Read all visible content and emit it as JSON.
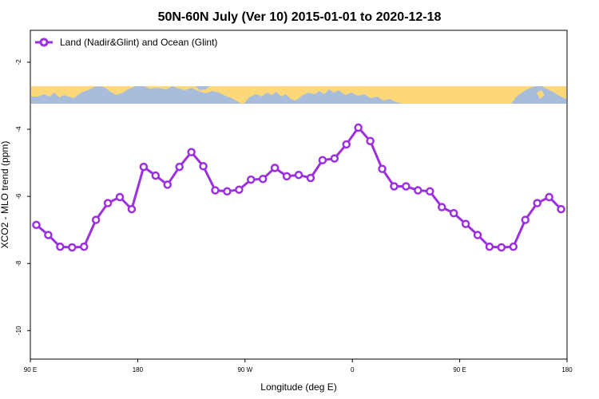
{
  "chart_data": {
    "type": "line",
    "title": "50N-60N July (Ver 10)   2015-01-01 to 2020-12-18",
    "xlabel": "Longitude (deg E)",
    "ylabel": "XCO2 - MLO trend (ppm)",
    "x_tick_labels": [
      "90 E",
      "180",
      "90 W",
      "0",
      "90 E",
      "180"
    ],
    "x_tick_values": [
      90,
      180,
      270,
      360,
      450,
      540
    ],
    "xlim": [
      90,
      540
    ],
    "y_tick_labels": [
      "-2",
      "-4",
      "-6",
      "-8",
      "-10"
    ],
    "y_tick_values": [
      -2,
      -4,
      -6,
      -8,
      -10
    ],
    "ylim": [
      -10.85,
      -1.05
    ],
    "legend_position": "top-left",
    "colors": {
      "series": "#9b30e0",
      "map_land": "#fdd87a",
      "map_ocean": "#a8bcdc"
    },
    "series": [
      {
        "name": "Land (Nadir&Glint) and Ocean (Glint)",
        "x": [
          95,
          105,
          115,
          125,
          135,
          145,
          155,
          165,
          175,
          185,
          195,
          205,
          215,
          225,
          235,
          245,
          255,
          265,
          275,
          285,
          295,
          305,
          315,
          325,
          335,
          345,
          355,
          365,
          375,
          385,
          395,
          405,
          415,
          425,
          435,
          445,
          455,
          465,
          475,
          485,
          495,
          505,
          515,
          525,
          535
        ],
        "y": [
          -6.85,
          -7.15,
          -7.5,
          -7.52,
          -7.5,
          -6.7,
          -6.2,
          -6.02,
          -6.38,
          -5.12,
          -5.38,
          -5.65,
          -5.12,
          -4.68,
          -5.1,
          -5.82,
          -5.85,
          -5.8,
          -5.5,
          -5.48,
          -5.15,
          -5.4,
          -5.36,
          -5.45,
          -4.92,
          -4.87,
          -4.45,
          -3.95,
          -4.35,
          -5.18,
          -5.7,
          -5.7,
          -5.82,
          -5.85,
          -6.32,
          -6.5,
          -6.82,
          -7.15,
          -7.5,
          -7.52,
          -7.5,
          -6.7,
          -6.2,
          -6.02,
          -6.38
        ]
      }
    ]
  }
}
